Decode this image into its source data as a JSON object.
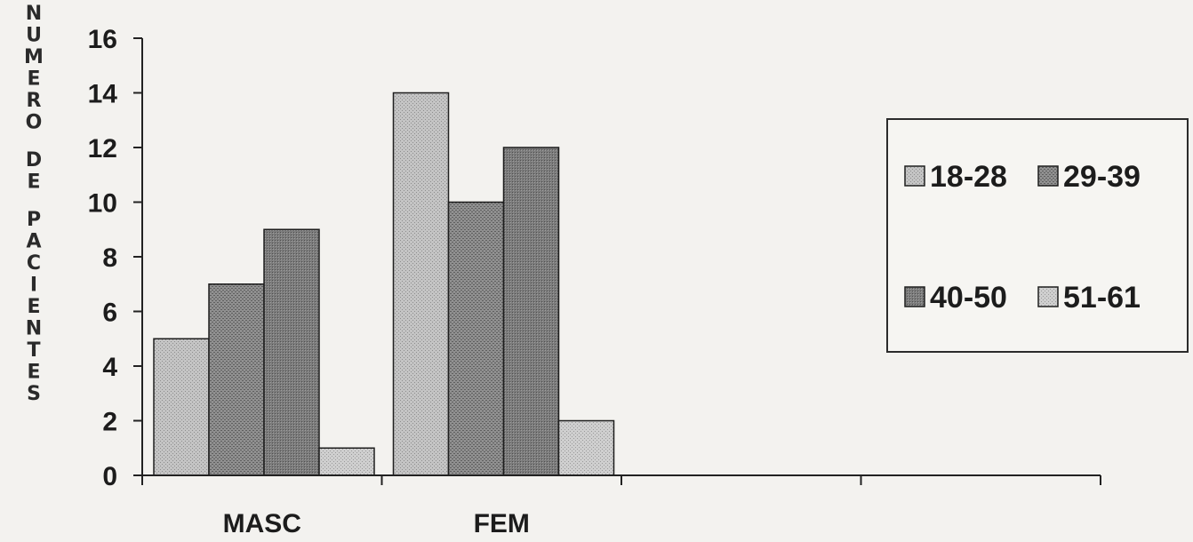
{
  "chart_data": {
    "type": "bar",
    "categories": [
      "MASC",
      "FEM",
      "",
      ""
    ],
    "series": [
      {
        "name": "18-28",
        "values": [
          5,
          14,
          null,
          null
        ],
        "color": "#bdbdbd"
      },
      {
        "name": "29-39",
        "values": [
          7,
          10,
          null,
          null
        ],
        "color": "#8a8a8a"
      },
      {
        "name": "40-50",
        "values": [
          9,
          12,
          null,
          null
        ],
        "color": "#7a7a7a"
      },
      {
        "name": "51-61",
        "values": [
          1,
          2,
          null,
          null
        ],
        "color": "#c9c9c9"
      }
    ],
    "ylabel": "NUMERO DE PACIENTES",
    "xlabel": "",
    "ylim": [
      0,
      16
    ],
    "yticks": [
      0,
      2,
      4,
      6,
      8,
      10,
      12,
      14,
      16
    ],
    "legend_position": "right",
    "grid": false
  }
}
